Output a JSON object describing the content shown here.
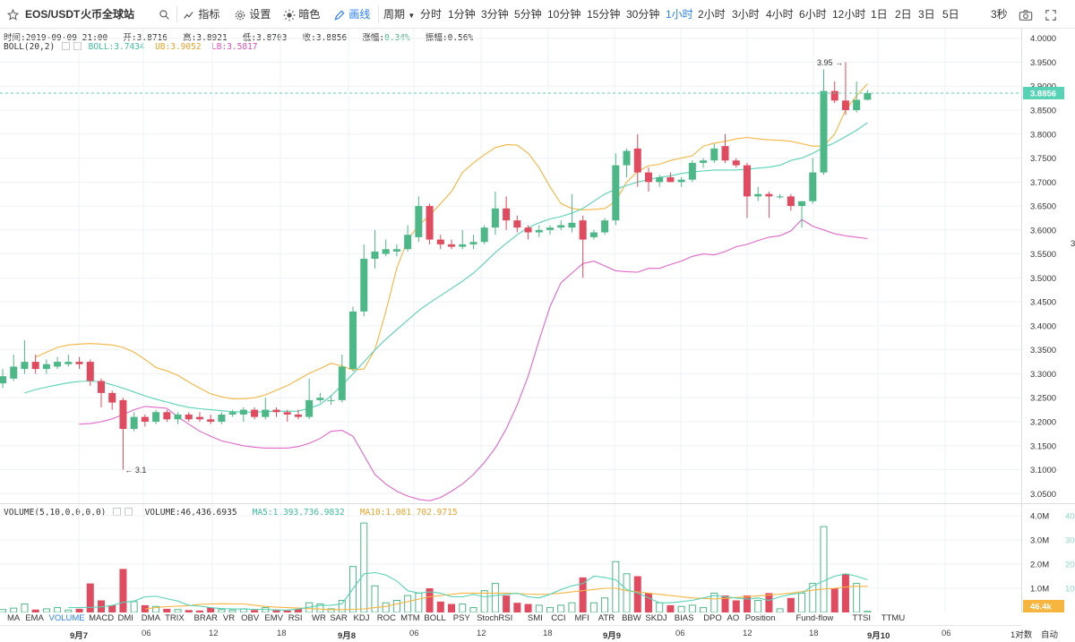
{
  "toolbar": {
    "symbol": "EOS/USDT",
    "exchange": "火币全球站",
    "indicators_label": "指标",
    "settings_label": "设置",
    "dark_label": "暗色",
    "draw_label": "画线",
    "period_label": "周期",
    "timeframes": [
      "分时",
      "1分钟",
      "3分钟",
      "5分钟",
      "10分钟",
      "15分钟",
      "30分钟",
      "1小时",
      "2小时",
      "3小时",
      "4小时",
      "6小时",
      "12小时",
      "1日",
      "2日",
      "3日",
      "5日"
    ],
    "active_timeframe": "1小时",
    "countdown": "3秒"
  },
  "ohlc": {
    "time_label": "时间:",
    "time": "2019-09-09 21:00",
    "open_label": "开:",
    "open": "3.8716",
    "high_label": "高:",
    "high": "3.8921",
    "low_label": "低:",
    "low": "3.8703",
    "close_label": "收:",
    "close": "3.8856",
    "change_label": "涨幅:",
    "change": "0.34%",
    "amplitude_label": "振幅:",
    "amplitude": "0.56%"
  },
  "boll": {
    "label": "BOLL(20,2)",
    "mb_label": "BOLL:",
    "mb": "3.7434",
    "ub_label": "UB:",
    "ub": "3.9052",
    "lb_label": "LB:",
    "lb": "3.5817"
  },
  "volume": {
    "label": "VOLUME(5,10,0,0,0,0)",
    "vol_label": "VOLUME:",
    "vol": "46,436.6935",
    "ma5_label": "MA5:",
    "ma5": "1,393,736.9832",
    "ma10_label": "MA10:",
    "ma10": "1,081,702.9715",
    "current_tag": "46.4k"
  },
  "price_axis": {
    "ticks": [
      "4.0000",
      "3.9500",
      "3.9000",
      "3.8500",
      "3.8000",
      "3.7500",
      "3.7000",
      "3.6500",
      "3.6000",
      "3.5500",
      "3.5000",
      "3.4500",
      "3.4000",
      "3.3500",
      "3.3000",
      "3.2500",
      "3.2000",
      "3.1500",
      "3.1000",
      "3.0500"
    ],
    "current_price": "3.8856",
    "partial_right_label": "3",
    "max_marker": "3.95",
    "min_marker": "3.1"
  },
  "volume_axis": {
    "ticks": [
      "4.0M",
      "3.0M",
      "2.0M",
      "1.0M"
    ],
    "partial_labels": [
      "40",
      "30",
      "20",
      "10"
    ]
  },
  "indicators": [
    "MA",
    "EMA",
    "VOLUME",
    "MACD",
    "DMI",
    "DMA",
    "TRIX",
    "BRAR",
    "VR",
    "OBV",
    "EMV",
    "RSI",
    "WR",
    "SAR",
    "KDJ",
    "ROC",
    "MTM",
    "BOLL",
    "PSY",
    "StochRSI",
    "SMI",
    "CCI",
    "MFI",
    "ATR",
    "BBW",
    "SKDJ",
    "BIAS",
    "DPO",
    "AO",
    "Position",
    "Fund-flow",
    "TTSI",
    "TTMU"
  ],
  "active_indicator": "VOLUME",
  "date_axis": [
    {
      "label": "9月7",
      "major": true
    },
    {
      "label": "06",
      "major": false
    },
    {
      "label": "12",
      "major": false
    },
    {
      "label": "18",
      "major": false
    },
    {
      "label": "9月8",
      "major": true
    },
    {
      "label": "06",
      "major": false
    },
    {
      "label": "12",
      "major": false
    },
    {
      "label": "18",
      "major": false
    },
    {
      "label": "9月9",
      "major": true
    },
    {
      "label": "06",
      "major": false
    },
    {
      "label": "12",
      "major": false
    },
    {
      "label": "18",
      "major": false
    },
    {
      "label": "9月10",
      "major": true
    },
    {
      "label": "06",
      "major": false
    }
  ],
  "bottom_right": {
    "log_label": "1对数",
    "auto_label": "自动"
  },
  "colors": {
    "up": "#4db887",
    "down": "#e04b5f",
    "ub": "#f5b53f",
    "mb": "#57d2b5",
    "lb": "#e066c9",
    "ma5": "#57d2b5",
    "ma10": "#f5b53f",
    "accent": "#2a7fff",
    "price_tag": "#57d2b5",
    "grid": "#eef1f5"
  },
  "chart_data": {
    "type": "candlestick",
    "title": "EOS/USDT",
    "interval": "1小时",
    "ylim": [
      3.03,
      4.02
    ],
    "volume_ylim": [
      0,
      4000000
    ],
    "candles": [
      {
        "o": 3.28,
        "h": 3.31,
        "l": 3.27,
        "c": 3.295,
        "v": 120000
      },
      {
        "o": 3.29,
        "h": 3.34,
        "l": 3.285,
        "c": 3.315,
        "v": 180000
      },
      {
        "o": 3.31,
        "h": 3.37,
        "l": 3.3,
        "c": 3.325,
        "v": 350000
      },
      {
        "o": 3.325,
        "h": 3.34,
        "l": 3.3,
        "c": 3.31,
        "v": 120000
      },
      {
        "o": 3.31,
        "h": 3.33,
        "l": 3.3,
        "c": 3.32,
        "v": 150000
      },
      {
        "o": 3.315,
        "h": 3.335,
        "l": 3.31,
        "c": 3.325,
        "v": 200000
      },
      {
        "o": 3.32,
        "h": 3.34,
        "l": 3.315,
        "c": 3.325,
        "v": 100000
      },
      {
        "o": 3.325,
        "h": 3.335,
        "l": 3.31,
        "c": 3.32,
        "v": 150000
      },
      {
        "o": 3.325,
        "h": 3.33,
        "l": 3.275,
        "c": 3.285,
        "v": 1200000
      },
      {
        "o": 3.285,
        "h": 3.29,
        "l": 3.23,
        "c": 3.26,
        "v": 500000
      },
      {
        "o": 3.26,
        "h": 3.265,
        "l": 3.225,
        "c": 3.24,
        "v": 300000
      },
      {
        "o": 3.245,
        "h": 3.25,
        "l": 3.1,
        "c": 3.185,
        "v": 1800000
      },
      {
        "o": 3.185,
        "h": 3.22,
        "l": 3.18,
        "c": 3.21,
        "v": 450000
      },
      {
        "o": 3.21,
        "h": 3.215,
        "l": 3.19,
        "c": 3.2,
        "v": 300000
      },
      {
        "o": 3.2,
        "h": 3.225,
        "l": 3.195,
        "c": 3.22,
        "v": 250000
      },
      {
        "o": 3.22,
        "h": 3.225,
        "l": 3.2,
        "c": 3.205,
        "v": 150000
      },
      {
        "o": 3.205,
        "h": 3.22,
        "l": 3.195,
        "c": 3.215,
        "v": 120000
      },
      {
        "o": 3.215,
        "h": 3.22,
        "l": 3.2,
        "c": 3.205,
        "v": 100000
      },
      {
        "o": 3.21,
        "h": 3.22,
        "l": 3.2,
        "c": 3.205,
        "v": 80000
      },
      {
        "o": 3.205,
        "h": 3.215,
        "l": 3.195,
        "c": 3.2,
        "v": 200000
      },
      {
        "o": 3.2,
        "h": 3.22,
        "l": 3.195,
        "c": 3.215,
        "v": 120000
      },
      {
        "o": 3.215,
        "h": 3.225,
        "l": 3.21,
        "c": 3.22,
        "v": 100000
      },
      {
        "o": 3.215,
        "h": 3.23,
        "l": 3.2,
        "c": 3.225,
        "v": 150000
      },
      {
        "o": 3.225,
        "h": 3.23,
        "l": 3.205,
        "c": 3.21,
        "v": 100000
      },
      {
        "o": 3.21,
        "h": 3.25,
        "l": 3.205,
        "c": 3.225,
        "v": 200000
      },
      {
        "o": 3.225,
        "h": 3.23,
        "l": 3.21,
        "c": 3.22,
        "v": 120000
      },
      {
        "o": 3.22,
        "h": 3.225,
        "l": 3.2,
        "c": 3.215,
        "v": 80000
      },
      {
        "o": 3.215,
        "h": 3.225,
        "l": 3.205,
        "c": 3.21,
        "v": 150000
      },
      {
        "o": 3.21,
        "h": 3.29,
        "l": 3.205,
        "c": 3.245,
        "v": 400000
      },
      {
        "o": 3.245,
        "h": 3.26,
        "l": 3.24,
        "c": 3.25,
        "v": 350000
      },
      {
        "o": 3.245,
        "h": 3.255,
        "l": 3.235,
        "c": 3.245,
        "v": 150000
      },
      {
        "o": 3.245,
        "h": 3.34,
        "l": 3.24,
        "c": 3.315,
        "v": 500000
      },
      {
        "o": 3.31,
        "h": 3.44,
        "l": 3.305,
        "c": 3.43,
        "v": 1900000
      },
      {
        "o": 3.43,
        "h": 3.57,
        "l": 3.42,
        "c": 3.54,
        "v": 3700000
      },
      {
        "o": 3.54,
        "h": 3.6,
        "l": 3.52,
        "c": 3.555,
        "v": 1100000
      },
      {
        "o": 3.55,
        "h": 3.58,
        "l": 3.545,
        "c": 3.56,
        "v": 400000
      },
      {
        "o": 3.555,
        "h": 3.57,
        "l": 3.545,
        "c": 3.56,
        "v": 500000
      },
      {
        "o": 3.56,
        "h": 3.61,
        "l": 3.555,
        "c": 3.59,
        "v": 700000
      },
      {
        "o": 3.585,
        "h": 3.67,
        "l": 3.575,
        "c": 3.65,
        "v": 800000
      },
      {
        "o": 3.65,
        "h": 3.655,
        "l": 3.57,
        "c": 3.58,
        "v": 1000000
      },
      {
        "o": 3.58,
        "h": 3.59,
        "l": 3.56,
        "c": 3.57,
        "v": 450000
      },
      {
        "o": 3.57,
        "h": 3.58,
        "l": 3.56,
        "c": 3.565,
        "v": 350000
      },
      {
        "o": 3.565,
        "h": 3.6,
        "l": 3.56,
        "c": 3.57,
        "v": 350000
      },
      {
        "o": 3.57,
        "h": 3.59,
        "l": 3.56,
        "c": 3.575,
        "v": 200000
      },
      {
        "o": 3.575,
        "h": 3.61,
        "l": 3.57,
        "c": 3.605,
        "v": 900000
      },
      {
        "o": 3.605,
        "h": 3.68,
        "l": 3.59,
        "c": 3.645,
        "v": 1200000
      },
      {
        "o": 3.645,
        "h": 3.67,
        "l": 3.6,
        "c": 3.62,
        "v": 700000
      },
      {
        "o": 3.62,
        "h": 3.63,
        "l": 3.595,
        "c": 3.605,
        "v": 400000
      },
      {
        "o": 3.605,
        "h": 3.61,
        "l": 3.58,
        "c": 3.595,
        "v": 350000
      },
      {
        "o": 3.595,
        "h": 3.61,
        "l": 3.585,
        "c": 3.6,
        "v": 300000
      },
      {
        "o": 3.6,
        "h": 3.61,
        "l": 3.59,
        "c": 3.605,
        "v": 200000
      },
      {
        "o": 3.605,
        "h": 3.62,
        "l": 3.6,
        "c": 3.61,
        "v": 300000
      },
      {
        "o": 3.605,
        "h": 3.675,
        "l": 3.595,
        "c": 3.615,
        "v": 400000
      },
      {
        "o": 3.62,
        "h": 3.63,
        "l": 3.5,
        "c": 3.58,
        "v": 1450000
      },
      {
        "o": 3.585,
        "h": 3.6,
        "l": 3.58,
        "c": 3.595,
        "v": 400000
      },
      {
        "o": 3.595,
        "h": 3.625,
        "l": 3.59,
        "c": 3.62,
        "v": 600000
      },
      {
        "o": 3.62,
        "h": 3.76,
        "l": 3.61,
        "c": 3.735,
        "v": 2100000
      },
      {
        "o": 3.735,
        "h": 3.77,
        "l": 3.71,
        "c": 3.765,
        "v": 1600000
      },
      {
        "o": 3.77,
        "h": 3.8,
        "l": 3.69,
        "c": 3.72,
        "v": 1500000
      },
      {
        "o": 3.72,
        "h": 3.73,
        "l": 3.68,
        "c": 3.7,
        "v": 800000
      },
      {
        "o": 3.7,
        "h": 3.715,
        "l": 3.69,
        "c": 3.71,
        "v": 400000
      },
      {
        "o": 3.71,
        "h": 3.72,
        "l": 3.7,
        "c": 3.7,
        "v": 300000
      },
      {
        "o": 3.7,
        "h": 3.71,
        "l": 3.69,
        "c": 3.705,
        "v": 250000
      },
      {
        "o": 3.705,
        "h": 3.745,
        "l": 3.7,
        "c": 3.74,
        "v": 300000
      },
      {
        "o": 3.74,
        "h": 3.75,
        "l": 3.73,
        "c": 3.745,
        "v": 200000
      },
      {
        "o": 3.745,
        "h": 3.78,
        "l": 3.74,
        "c": 3.77,
        "v": 800000
      },
      {
        "o": 3.775,
        "h": 3.8,
        "l": 3.74,
        "c": 3.745,
        "v": 700000
      },
      {
        "o": 3.745,
        "h": 3.75,
        "l": 3.73,
        "c": 3.735,
        "v": 500000
      },
      {
        "o": 3.735,
        "h": 3.74,
        "l": 3.625,
        "c": 3.67,
        "v": 700000
      },
      {
        "o": 3.67,
        "h": 3.69,
        "l": 3.66,
        "c": 3.675,
        "v": 500000
      },
      {
        "o": 3.675,
        "h": 3.68,
        "l": 3.625,
        "c": 3.67,
        "v": 800000
      },
      {
        "o": 3.67,
        "h": 3.675,
        "l": 3.665,
        "c": 3.67,
        "v": 150000
      },
      {
        "o": 3.67,
        "h": 3.675,
        "l": 3.64,
        "c": 3.65,
        "v": 600000
      },
      {
        "o": 3.65,
        "h": 3.66,
        "l": 3.605,
        "c": 3.66,
        "v": 800000
      },
      {
        "o": 3.66,
        "h": 3.75,
        "l": 3.655,
        "c": 3.72,
        "v": 1200000
      },
      {
        "o": 3.72,
        "h": 3.935,
        "l": 3.715,
        "c": 3.89,
        "v": 3550000
      },
      {
        "o": 3.89,
        "h": 3.91,
        "l": 3.865,
        "c": 3.87,
        "v": 1000000
      },
      {
        "o": 3.87,
        "h": 3.95,
        "l": 3.84,
        "c": 3.85,
        "v": 1600000
      },
      {
        "o": 3.85,
        "h": 3.91,
        "l": 3.845,
        "c": 3.8716,
        "v": 1200000
      },
      {
        "o": 3.8716,
        "h": 3.8921,
        "l": 3.8703,
        "c": 3.8856,
        "v": 46437
      }
    ],
    "boll_ub": [
      3.335,
      3.345,
      3.355,
      3.36,
      3.362,
      3.363,
      3.362,
      3.36,
      3.355,
      3.345,
      3.33,
      3.313,
      3.306,
      3.297,
      3.283,
      3.27,
      3.258,
      3.252,
      3.248,
      3.248,
      3.25,
      3.256,
      3.266,
      3.275,
      3.288,
      3.301,
      3.311,
      3.322,
      3.316,
      3.308,
      3.31,
      3.35,
      3.43,
      3.52,
      3.58,
      3.61,
      3.63,
      3.655,
      3.68,
      3.72,
      3.74,
      3.757,
      3.772,
      3.778,
      3.777,
      3.76,
      3.73,
      3.69,
      3.655,
      3.645,
      3.642,
      3.643,
      3.645,
      3.66,
      3.7,
      3.722,
      3.734,
      3.737,
      3.745,
      3.75,
      3.755,
      3.775,
      3.781,
      3.785,
      3.79,
      3.793,
      3.79,
      3.788,
      3.787,
      3.785,
      3.78,
      3.775,
      3.775,
      3.8,
      3.85,
      3.88,
      3.905
    ],
    "boll_mb": [
      3.26,
      3.267,
      3.272,
      3.277,
      3.281,
      3.284,
      3.285,
      3.283,
      3.277,
      3.27,
      3.262,
      3.254,
      3.247,
      3.241,
      3.235,
      3.23,
      3.227,
      3.225,
      3.223,
      3.221,
      3.22,
      3.22,
      3.221,
      3.222,
      3.222,
      3.222,
      3.228,
      3.236,
      3.254,
      3.276,
      3.3,
      3.325,
      3.35,
      3.372,
      3.392,
      3.412,
      3.432,
      3.448,
      3.463,
      3.478,
      3.493,
      3.51,
      3.531,
      3.553,
      3.572,
      3.59,
      3.605,
      3.615,
      3.623,
      3.628,
      3.635,
      3.645,
      3.66,
      3.675,
      3.685,
      3.693,
      3.7,
      3.705,
      3.71,
      3.713,
      3.718,
      3.721,
      3.723,
      3.725,
      3.725,
      3.725,
      3.727,
      3.729,
      3.731,
      3.735,
      3.745,
      3.75,
      3.76,
      3.772,
      3.782,
      3.795,
      3.808,
      3.824
    ],
    "boll_lb": [
      3.195,
      3.196,
      3.2,
      3.206,
      3.215,
      3.225,
      3.232,
      3.23,
      3.228,
      3.21,
      3.195,
      3.18,
      3.17,
      3.16,
      3.155,
      3.15,
      3.147,
      3.145,
      3.145,
      3.145,
      3.148,
      3.155,
      3.165,
      3.18,
      3.182,
      3.17,
      3.13,
      3.09,
      3.07,
      3.055,
      3.045,
      3.038,
      3.035,
      3.042,
      3.055,
      3.07,
      3.09,
      3.115,
      3.145,
      3.185,
      3.235,
      3.295,
      3.37,
      3.44,
      3.49,
      3.51,
      3.53,
      3.535,
      3.525,
      3.515,
      3.513,
      3.512,
      3.52,
      3.52,
      3.528,
      3.535,
      3.545,
      3.55,
      3.548,
      3.555,
      3.565,
      3.57,
      3.578,
      3.585,
      3.588,
      3.598,
      3.622,
      3.608,
      3.6,
      3.592,
      3.588,
      3.585,
      3.582
    ],
    "volume_ma5": [
      200000,
      200000,
      210000,
      230000,
      290000,
      420000,
      470000,
      650000,
      670000,
      570000,
      470000,
      300000,
      260000,
      200000,
      160000,
      150000,
      140000,
      130000,
      130000,
      100000,
      100000,
      140000,
      220000,
      290000,
      300000,
      360000,
      980000,
      1600000,
      1650000,
      1550000,
      1300000,
      900000,
      800000,
      850000,
      800000,
      650000,
      650000,
      750000,
      650000,
      700000,
      750000,
      800000,
      650000,
      600000,
      750000,
      950000,
      1100000,
      1200000,
      1500000,
      1450000,
      1350000,
      950000,
      800000,
      600000,
      400000,
      400000,
      450000,
      500000,
      600000,
      700000,
      650000,
      600000,
      550000,
      600000,
      500000,
      650000,
      750000,
      800000,
      1100000,
      1300000,
      1500000,
      1600000,
      1500000,
      1350000
    ],
    "volume_ma10": [
      150000,
      200000,
      240000,
      260000,
      280000,
      330000,
      350000,
      360000,
      350000,
      350000,
      300000,
      250000,
      220000,
      200000,
      180000,
      160000,
      140000,
      120000,
      120000,
      130000,
      150000,
      200000,
      250000,
      350000,
      450000,
      550000,
      650000,
      700000,
      750000,
      800000,
      800000,
      800000,
      800000,
      800000,
      780000,
      760000,
      750000,
      760000,
      800000,
      850000,
      900000,
      950000,
      1000000,
      1000000,
      900000,
      850000,
      800000,
      750000,
      700000,
      650000,
      600000,
      580000,
      560000,
      580000,
      620000,
      650000,
      680000,
      720000,
      760000,
      800000,
      860000,
      920000,
      970000,
      1000000,
      1050000,
      1080000,
      1080000
    ]
  }
}
